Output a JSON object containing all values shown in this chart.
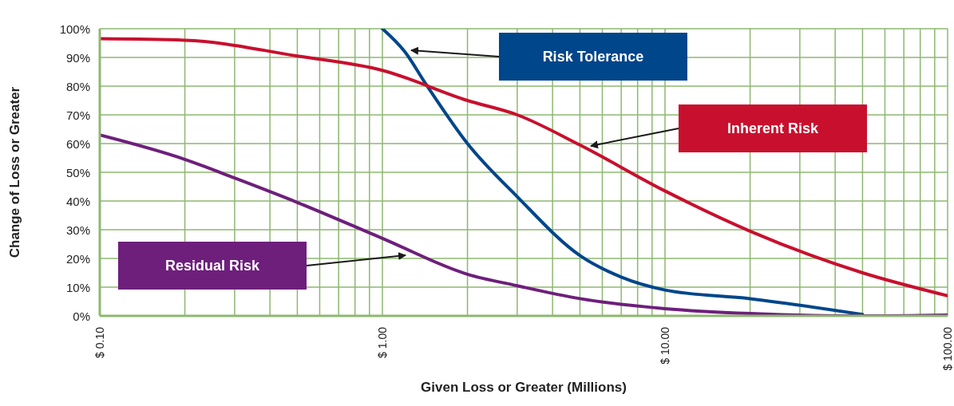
{
  "chart_data": {
    "type": "line",
    "xlabel": "Given Loss or Greater (Millions)",
    "ylabel": "Change of Loss or Greater",
    "log": "x",
    "grid": true,
    "legend": false,
    "marker": "none",
    "line_style": "solid",
    "xlim": [
      0.1,
      100
    ],
    "xticks": [
      {
        "value": 0.1,
        "label": "$ 0.10"
      },
      {
        "value": 0.2,
        "label": null
      },
      {
        "value": 0.3,
        "label": null
      },
      {
        "value": 0.4,
        "label": null
      },
      {
        "value": 0.5,
        "label": null
      },
      {
        "value": 0.6,
        "label": null
      },
      {
        "value": 0.7,
        "label": null
      },
      {
        "value": 0.8,
        "label": null
      },
      {
        "value": 0.9,
        "label": null
      },
      {
        "value": 1,
        "label": "$ 1.00"
      },
      {
        "value": 2,
        "label": null
      },
      {
        "value": 3,
        "label": null
      },
      {
        "value": 4,
        "label": null
      },
      {
        "value": 5,
        "label": null
      },
      {
        "value": 6,
        "label": null
      },
      {
        "value": 7,
        "label": null
      },
      {
        "value": 8,
        "label": null
      },
      {
        "value": 9,
        "label": null
      },
      {
        "value": 10,
        "label": "$ 10.00"
      },
      {
        "value": 20,
        "label": null
      },
      {
        "value": 30,
        "label": null
      },
      {
        "value": 40,
        "label": null
      },
      {
        "value": 50,
        "label": null
      },
      {
        "value": 60,
        "label": null
      },
      {
        "value": 70,
        "label": null
      },
      {
        "value": 80,
        "label": null
      },
      {
        "value": 90,
        "label": null
      },
      {
        "value": 100,
        "label": "$ 100.00"
      }
    ],
    "ylim": [
      0,
      100
    ],
    "yticks": [
      {
        "value": 0,
        "label": "0%"
      },
      {
        "value": 10,
        "label": "10%"
      },
      {
        "value": 20,
        "label": "20%"
      },
      {
        "value": 30,
        "label": "30%"
      },
      {
        "value": 40,
        "label": "40%"
      },
      {
        "value": 50,
        "label": "50%"
      },
      {
        "value": 60,
        "label": "60%"
      },
      {
        "value": 70,
        "label": "70%"
      },
      {
        "value": 80,
        "label": "80%"
      },
      {
        "value": 90,
        "label": "90%"
      },
      {
        "value": 100,
        "label": "100%"
      }
    ],
    "series": [
      {
        "color": "#00468b",
        "x": [
          1,
          1.2,
          1.43,
          2,
          3,
          5,
          7,
          10,
          20,
          50
        ],
        "values": [
          100,
          92,
          80.5,
          60,
          41.5,
          21,
          13.5,
          9,
          6,
          0.5
        ]
      },
      {
        "color": "#c8102e",
        "x": [
          0.1,
          0.2,
          0.5,
          1,
          2,
          3,
          5,
          10,
          20,
          50,
          100
        ],
        "values": [
          96.5,
          96,
          90.5,
          85.5,
          75,
          70,
          59.5,
          43.5,
          29.5,
          15,
          7
        ]
      },
      {
        "color": "#6e1f7c",
        "x": [
          0.1,
          0.2,
          0.3,
          0.5,
          1,
          2,
          3,
          5,
          10,
          20,
          50,
          100
        ],
        "values": [
          63,
          54.5,
          48,
          39.5,
          27,
          14.5,
          10.5,
          6,
          2.5,
          0.8,
          0,
          0.3
        ]
      }
    ],
    "annotations": [
      "Risk Tolerance",
      "Inherent Risk",
      "Residual Risk"
    ]
  }
}
